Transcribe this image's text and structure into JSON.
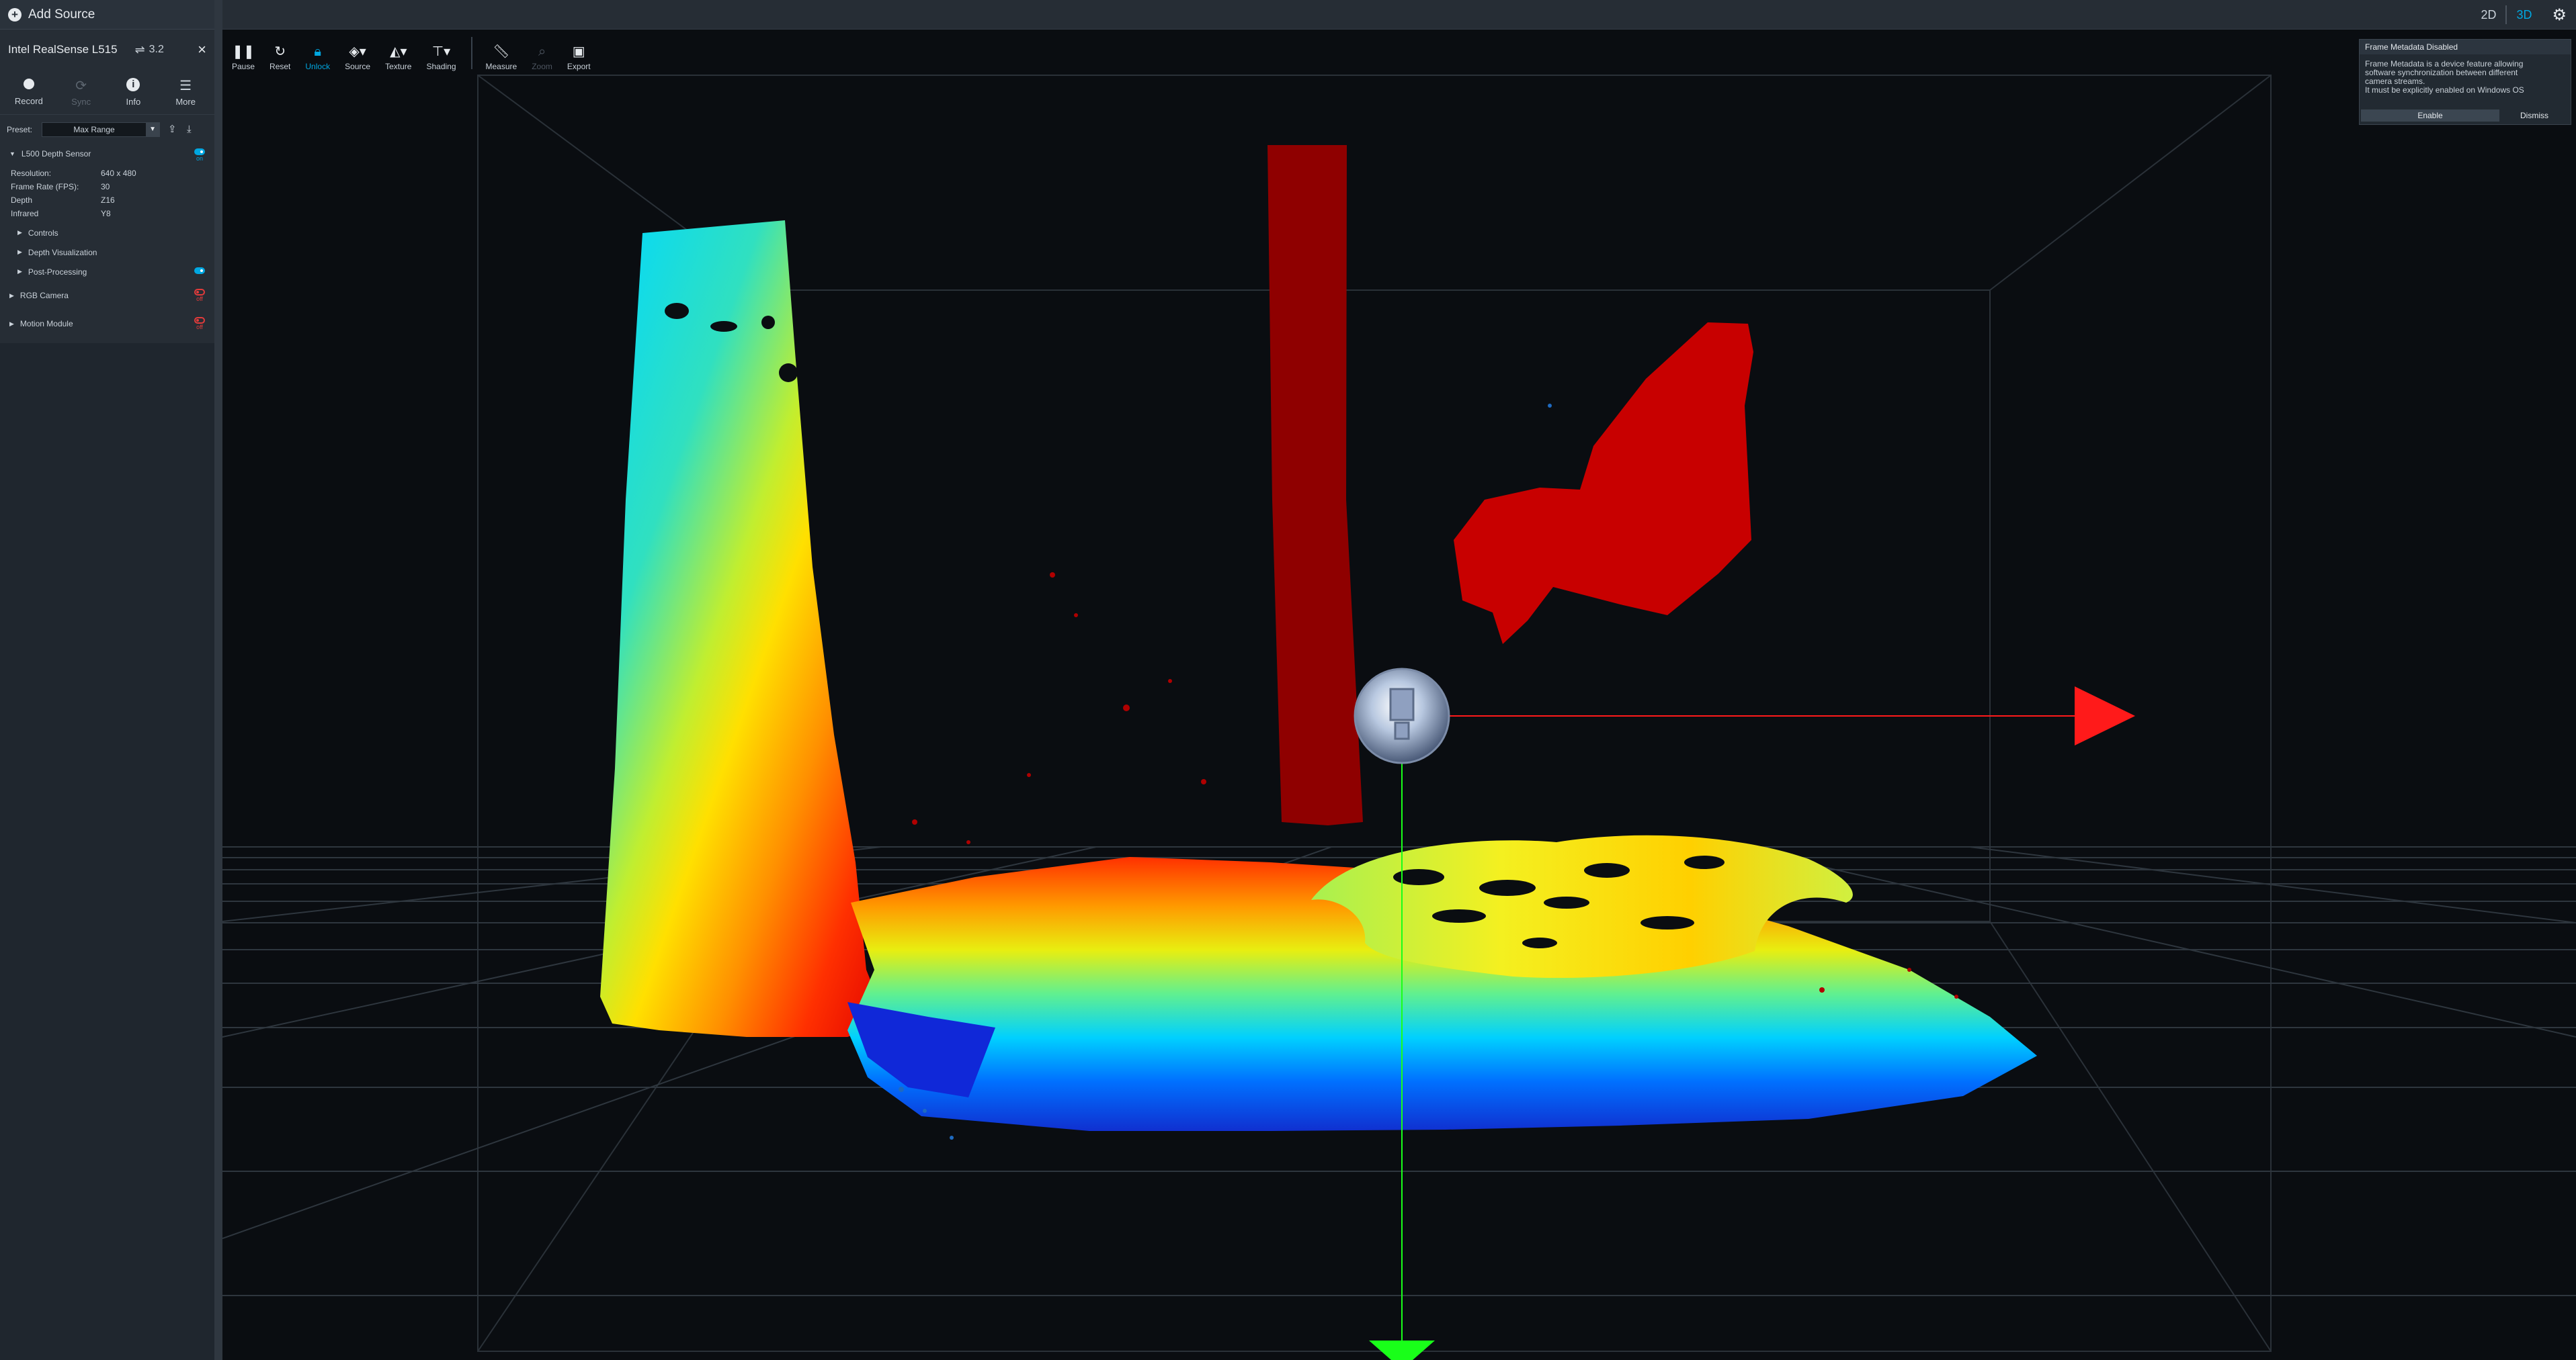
{
  "sidebar": {
    "add_source": "Add Source",
    "device_name": "Intel RealSense L515",
    "usb_version": "3.2",
    "close": "×",
    "actions": [
      {
        "label": "Record",
        "icon": "record-icon"
      },
      {
        "label": "Sync",
        "icon": "sync-icon",
        "disabled": true
      },
      {
        "label": "Info",
        "icon": "info-icon"
      },
      {
        "label": "More",
        "icon": "hamburger-icon"
      }
    ],
    "preset_label": "Preset:",
    "preset_value": "Max Range",
    "depth_sensor": {
      "label": "L500 Depth Sensor",
      "toggle": "on",
      "props": [
        {
          "k": "Resolution:",
          "v": "640 x 480"
        },
        {
          "k": "Frame Rate (FPS):",
          "v": "30"
        },
        {
          "k": "Depth",
          "v": "Z16"
        },
        {
          "k": "Infrared",
          "v": "Y8"
        }
      ],
      "subsections": [
        "Controls",
        "Depth Visualization",
        "Post-Processing"
      ]
    },
    "rgb_camera": {
      "label": "RGB Camera",
      "toggle": "off"
    },
    "motion_module": {
      "label": "Motion Module",
      "toggle": "off"
    }
  },
  "toolbar": {
    "tools": [
      "Pause",
      "Reset",
      "Unlock",
      "Source",
      "Texture",
      "Shading",
      "Measure",
      "Zoom",
      "Export"
    ]
  },
  "view_switch": {
    "v2d": "2D",
    "v3d": "3D"
  },
  "notification": {
    "title": "Frame Metadata Disabled",
    "line1": "Frame Metadata is a device feature allowing",
    "line2": "software synchronization between different",
    "line3": "camera streams.",
    "line4": "It must be explicitly enabled on Windows OS",
    "enable": "Enable",
    "dismiss": "Dismiss"
  },
  "colors": {
    "accent": "#00a7e1",
    "off_red": "#e23b3b",
    "axis_x": "#ff1a1a",
    "axis_y": "#19ff19"
  }
}
